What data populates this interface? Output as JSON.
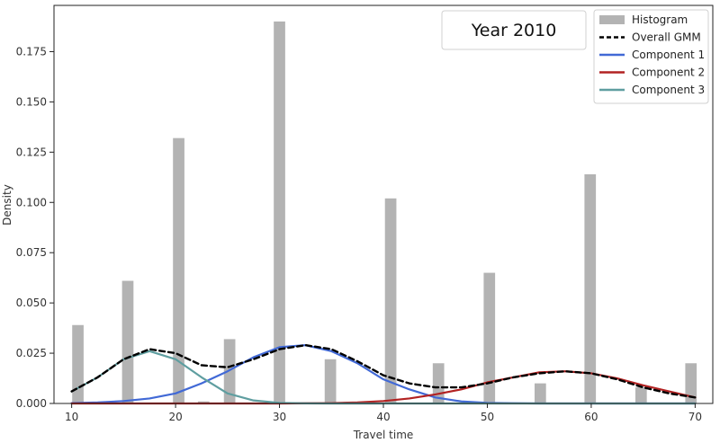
{
  "chart_data": {
    "type": "bar",
    "annotation": "Year 2010",
    "xlabel": "Travel time",
    "ylabel": "Density",
    "xlim": [
      8.3,
      71.7
    ],
    "ylim": [
      0,
      0.198
    ],
    "x_ticks": [
      10,
      20,
      30,
      40,
      50,
      60,
      70
    ],
    "y_ticks": [
      0.0,
      0.025,
      0.05,
      0.075,
      0.1,
      0.125,
      0.15,
      0.175
    ],
    "y_tick_labels": [
      "0.000",
      "0.025",
      "0.050",
      "0.075",
      "0.100",
      "0.125",
      "0.150",
      "0.175"
    ],
    "grid": false,
    "legend_position": "top-right",
    "histogram": {
      "name": "Histogram",
      "color": "#b3b3b3",
      "bin_width": 1.1,
      "bins": [
        {
          "x": 10.6,
          "value": 0.039
        },
        {
          "x": 15.4,
          "value": 0.061
        },
        {
          "x": 20.3,
          "value": 0.132
        },
        {
          "x": 22.7,
          "value": 0.001
        },
        {
          "x": 25.2,
          "value": 0.032
        },
        {
          "x": 30.0,
          "value": 0.19
        },
        {
          "x": 34.9,
          "value": 0.022
        },
        {
          "x": 40.7,
          "value": 0.102
        },
        {
          "x": 45.3,
          "value": 0.02
        },
        {
          "x": 50.2,
          "value": 0.065
        },
        {
          "x": 55.1,
          "value": 0.01
        },
        {
          "x": 59.9,
          "value": 0.114
        },
        {
          "x": 64.8,
          "value": 0.008
        },
        {
          "x": 69.6,
          "value": 0.02
        }
      ]
    },
    "series": [
      {
        "name": "Overall GMM",
        "color": "#000000",
        "dash": true,
        "x": [
          10,
          12.5,
          15,
          17.5,
          20,
          22.5,
          25,
          27.5,
          30,
          32.5,
          35,
          37.5,
          40,
          42.5,
          45,
          47.5,
          50,
          52.5,
          55,
          57.5,
          60,
          62.5,
          65,
          67.5,
          70
        ],
        "y": [
          0.006,
          0.013,
          0.022,
          0.027,
          0.025,
          0.019,
          0.018,
          0.022,
          0.027,
          0.029,
          0.027,
          0.021,
          0.014,
          0.01,
          0.008,
          0.008,
          0.01,
          0.013,
          0.015,
          0.016,
          0.015,
          0.012,
          0.008,
          0.005,
          0.003
        ]
      },
      {
        "name": "Component 1",
        "color": "#4169d6",
        "dash": false,
        "x": [
          10,
          12.5,
          15,
          17.5,
          20,
          22.5,
          25,
          27.5,
          30,
          32.5,
          35,
          37.5,
          40,
          42.5,
          45,
          47.5,
          50,
          52.5,
          55,
          57.5,
          60,
          62.5,
          65,
          67.5,
          70
        ],
        "y": [
          0.0002,
          0.0005,
          0.0012,
          0.0025,
          0.005,
          0.01,
          0.016,
          0.023,
          0.028,
          0.029,
          0.026,
          0.02,
          0.012,
          0.007,
          0.003,
          0.001,
          0.0003,
          0.0001,
          0,
          0,
          0,
          0,
          0,
          0,
          0
        ]
      },
      {
        "name": "Component 2",
        "color": "#b22222",
        "dash": false,
        "x": [
          10,
          12.5,
          15,
          17.5,
          20,
          22.5,
          25,
          27.5,
          30,
          32.5,
          35,
          37.5,
          40,
          42.5,
          45,
          47.5,
          50,
          52.5,
          55,
          57.5,
          60,
          62.5,
          65,
          67.5,
          70
        ],
        "y": [
          0,
          0,
          0,
          0,
          0,
          0,
          0,
          0,
          0,
          0.0001,
          0.0002,
          0.0005,
          0.0012,
          0.0025,
          0.0045,
          0.007,
          0.0105,
          0.013,
          0.0155,
          0.016,
          0.015,
          0.0125,
          0.009,
          0.006,
          0.003
        ]
      },
      {
        "name": "Component 3",
        "color": "#5f9ea0",
        "dash": false,
        "x": [
          10,
          12.5,
          15,
          17.5,
          20,
          22.5,
          25,
          27.5,
          30,
          32.5,
          35,
          37.5,
          40,
          42.5,
          45,
          47.5,
          50,
          52.5,
          55,
          57.5,
          60,
          62.5,
          65,
          67.5,
          70
        ],
        "y": [
          0.006,
          0.013,
          0.022,
          0.026,
          0.022,
          0.013,
          0.005,
          0.0015,
          0.0003,
          5e-05,
          0,
          0,
          0,
          0,
          0,
          0,
          0,
          0,
          0,
          0,
          0,
          0,
          0,
          0,
          0
        ]
      }
    ],
    "legend": [
      "Histogram",
      "Overall GMM",
      "Component 1",
      "Component 2",
      "Component 3"
    ]
  }
}
